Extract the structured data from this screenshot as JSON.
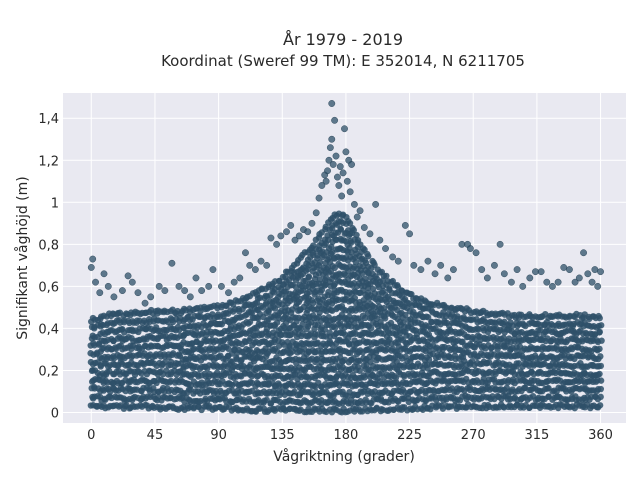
{
  "chart_data": {
    "type": "scatter",
    "title": "År 1979 - 2019",
    "subtitle": "Koordinat (Sweref 99 TM): E 352014, N 6211705",
    "xlabel": "Vågriktning (grader)",
    "ylabel": "Signifikant våghöjd (m)",
    "xlim": [
      -20,
      378
    ],
    "ylim": [
      -0.05,
      1.52
    ],
    "xticks": [
      0,
      45,
      90,
      135,
      180,
      225,
      270,
      315,
      360
    ],
    "xtick_labels": [
      "0",
      "45",
      "90",
      "135",
      "180",
      "225",
      "270",
      "315",
      "360"
    ],
    "yticks": [
      0,
      0.2,
      0.4,
      0.6,
      0.8,
      1.0,
      1.2,
      1.4
    ],
    "ytick_labels": [
      "0",
      "0,2",
      "0,4",
      "0,6",
      "0,8",
      "1",
      "1,2",
      "1,4"
    ],
    "grid": true,
    "marker_color": "#2e5068",
    "background_color": "#e9e9f1",
    "dense_band": [
      {
        "x": 0,
        "y": 0.44
      },
      {
        "x": 10,
        "y": 0.46
      },
      {
        "x": 20,
        "y": 0.47
      },
      {
        "x": 30,
        "y": 0.47
      },
      {
        "x": 45,
        "y": 0.48
      },
      {
        "x": 60,
        "y": 0.48
      },
      {
        "x": 75,
        "y": 0.49
      },
      {
        "x": 90,
        "y": 0.5
      },
      {
        "x": 105,
        "y": 0.53
      },
      {
        "x": 120,
        "y": 0.58
      },
      {
        "x": 135,
        "y": 0.64
      },
      {
        "x": 150,
        "y": 0.74
      },
      {
        "x": 160,
        "y": 0.82
      },
      {
        "x": 170,
        "y": 0.92
      },
      {
        "x": 175,
        "y": 0.95
      },
      {
        "x": 180,
        "y": 0.93
      },
      {
        "x": 185,
        "y": 0.88
      },
      {
        "x": 190,
        "y": 0.8
      },
      {
        "x": 200,
        "y": 0.7
      },
      {
        "x": 210,
        "y": 0.63
      },
      {
        "x": 225,
        "y": 0.56
      },
      {
        "x": 240,
        "y": 0.52
      },
      {
        "x": 255,
        "y": 0.5
      },
      {
        "x": 270,
        "y": 0.48
      },
      {
        "x": 285,
        "y": 0.47
      },
      {
        "x": 300,
        "y": 0.46
      },
      {
        "x": 315,
        "y": 0.46
      },
      {
        "x": 330,
        "y": 0.46
      },
      {
        "x": 345,
        "y": 0.46
      },
      {
        "x": 360,
        "y": 0.45
      }
    ],
    "band_floor": [
      {
        "x": 0,
        "y": 0.03
      },
      {
        "x": 90,
        "y": 0.02
      },
      {
        "x": 135,
        "y": 0.01
      },
      {
        "x": 180,
        "y": 0.01
      },
      {
        "x": 225,
        "y": 0.02
      },
      {
        "x": 270,
        "y": 0.03
      },
      {
        "x": 360,
        "y": 0.03
      }
    ],
    "points": [
      {
        "x": 0,
        "y": 0.69
      },
      {
        "x": 1,
        "y": 0.73
      },
      {
        "x": 3,
        "y": 0.62
      },
      {
        "x": 6,
        "y": 0.57
      },
      {
        "x": 9,
        "y": 0.66
      },
      {
        "x": 12,
        "y": 0.6
      },
      {
        "x": 16,
        "y": 0.55
      },
      {
        "x": 22,
        "y": 0.58
      },
      {
        "x": 26,
        "y": 0.65
      },
      {
        "x": 29,
        "y": 0.62
      },
      {
        "x": 33,
        "y": 0.57
      },
      {
        "x": 38,
        "y": 0.52
      },
      {
        "x": 42,
        "y": 0.55
      },
      {
        "x": 48,
        "y": 0.6
      },
      {
        "x": 52,
        "y": 0.58
      },
      {
        "x": 57,
        "y": 0.71
      },
      {
        "x": 62,
        "y": 0.6
      },
      {
        "x": 66,
        "y": 0.58
      },
      {
        "x": 70,
        "y": 0.55
      },
      {
        "x": 74,
        "y": 0.64
      },
      {
        "x": 78,
        "y": 0.58
      },
      {
        "x": 83,
        "y": 0.6
      },
      {
        "x": 86,
        "y": 0.68
      },
      {
        "x": 92,
        "y": 0.6
      },
      {
        "x": 97,
        "y": 0.57
      },
      {
        "x": 101,
        "y": 0.62
      },
      {
        "x": 105,
        "y": 0.64
      },
      {
        "x": 109,
        "y": 0.76
      },
      {
        "x": 112,
        "y": 0.7
      },
      {
        "x": 116,
        "y": 0.68
      },
      {
        "x": 120,
        "y": 0.72
      },
      {
        "x": 124,
        "y": 0.7
      },
      {
        "x": 127,
        "y": 0.83
      },
      {
        "x": 131,
        "y": 0.8
      },
      {
        "x": 134,
        "y": 0.84
      },
      {
        "x": 138,
        "y": 0.86
      },
      {
        "x": 141,
        "y": 0.89
      },
      {
        "x": 144,
        "y": 0.82
      },
      {
        "x": 147,
        "y": 0.84
      },
      {
        "x": 150,
        "y": 0.87
      },
      {
        "x": 153,
        "y": 0.86
      },
      {
        "x": 156,
        "y": 0.9
      },
      {
        "x": 159,
        "y": 0.95
      },
      {
        "x": 161,
        "y": 1.02
      },
      {
        "x": 163,
        "y": 1.08
      },
      {
        "x": 165,
        "y": 1.13
      },
      {
        "x": 166,
        "y": 1.1
      },
      {
        "x": 167,
        "y": 1.15
      },
      {
        "x": 168,
        "y": 1.2
      },
      {
        "x": 169,
        "y": 1.26
      },
      {
        "x": 170,
        "y": 1.3
      },
      {
        "x": 170,
        "y": 1.47
      },
      {
        "x": 171,
        "y": 1.18
      },
      {
        "x": 172,
        "y": 1.39
      },
      {
        "x": 173,
        "y": 1.22
      },
      {
        "x": 174,
        "y": 1.12
      },
      {
        "x": 175,
        "y": 1.08
      },
      {
        "x": 176,
        "y": 1.17
      },
      {
        "x": 177,
        "y": 1.03
      },
      {
        "x": 178,
        "y": 1.14
      },
      {
        "x": 179,
        "y": 1.35
      },
      {
        "x": 180,
        "y": 1.24
      },
      {
        "x": 181,
        "y": 1.1
      },
      {
        "x": 182,
        "y": 1.2
      },
      {
        "x": 183,
        "y": 1.05
      },
      {
        "x": 184,
        "y": 1.18
      },
      {
        "x": 186,
        "y": 0.99
      },
      {
        "x": 188,
        "y": 0.93
      },
      {
        "x": 190,
        "y": 0.96
      },
      {
        "x": 193,
        "y": 0.88
      },
      {
        "x": 197,
        "y": 0.85
      },
      {
        "x": 201,
        "y": 0.99
      },
      {
        "x": 204,
        "y": 0.82
      },
      {
        "x": 208,
        "y": 0.78
      },
      {
        "x": 213,
        "y": 0.74
      },
      {
        "x": 217,
        "y": 0.72
      },
      {
        "x": 222,
        "y": 0.89
      },
      {
        "x": 225,
        "y": 0.85
      },
      {
        "x": 228,
        "y": 0.7
      },
      {
        "x": 233,
        "y": 0.68
      },
      {
        "x": 238,
        "y": 0.72
      },
      {
        "x": 243,
        "y": 0.66
      },
      {
        "x": 247,
        "y": 0.7
      },
      {
        "x": 252,
        "y": 0.64
      },
      {
        "x": 256,
        "y": 0.68
      },
      {
        "x": 262,
        "y": 0.8
      },
      {
        "x": 266,
        "y": 0.8
      },
      {
        "x": 268,
        "y": 0.78
      },
      {
        "x": 272,
        "y": 0.76
      },
      {
        "x": 276,
        "y": 0.68
      },
      {
        "x": 280,
        "y": 0.64
      },
      {
        "x": 285,
        "y": 0.7
      },
      {
        "x": 289,
        "y": 0.8
      },
      {
        "x": 292,
        "y": 0.66
      },
      {
        "x": 297,
        "y": 0.62
      },
      {
        "x": 301,
        "y": 0.68
      },
      {
        "x": 305,
        "y": 0.6
      },
      {
        "x": 310,
        "y": 0.64
      },
      {
        "x": 314,
        "y": 0.67
      },
      {
        "x": 318,
        "y": 0.67
      },
      {
        "x": 322,
        "y": 0.62
      },
      {
        "x": 326,
        "y": 0.6
      },
      {
        "x": 330,
        "y": 0.62
      },
      {
        "x": 334,
        "y": 0.69
      },
      {
        "x": 338,
        "y": 0.68
      },
      {
        "x": 342,
        "y": 0.62
      },
      {
        "x": 345,
        "y": 0.64
      },
      {
        "x": 348,
        "y": 0.76
      },
      {
        "x": 351,
        "y": 0.66
      },
      {
        "x": 354,
        "y": 0.62
      },
      {
        "x": 356,
        "y": 0.68
      },
      {
        "x": 358,
        "y": 0.6
      },
      {
        "x": 360,
        "y": 0.67
      }
    ]
  }
}
